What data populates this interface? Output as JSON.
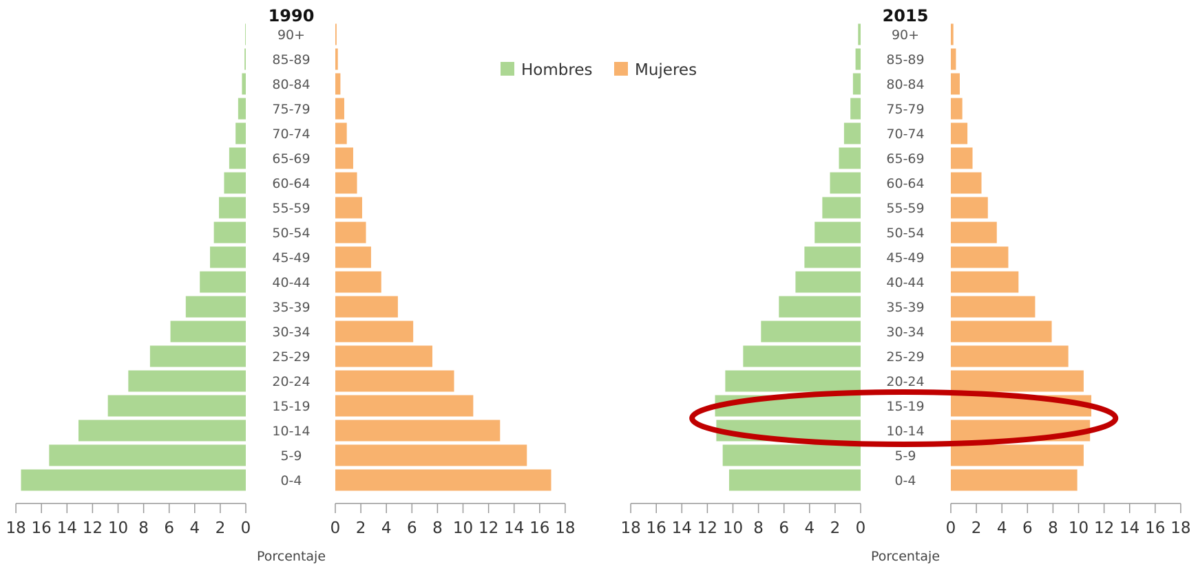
{
  "chart_data": [
    {
      "type": "bar",
      "title": "1990",
      "xlabel": "Porcentaje",
      "categories": [
        "0-4",
        "5-9",
        "10-14",
        "15-19",
        "20-24",
        "25-29",
        "30-34",
        "35-39",
        "40-44",
        "45-49",
        "50-54",
        "55-59",
        "60-64",
        "65-69",
        "70-74",
        "75-79",
        "80-84",
        "85-89",
        "90+"
      ],
      "series": [
        {
          "name": "Hombres",
          "color": "#acd793",
          "values": [
            17.6,
            15.4,
            13.1,
            10.8,
            9.2,
            7.5,
            5.9,
            4.7,
            3.6,
            2.8,
            2.5,
            2.1,
            1.7,
            1.3,
            0.8,
            0.6,
            0.3,
            0.1,
            0.05
          ]
        },
        {
          "name": "Mujeres",
          "color": "#f8b26e",
          "values": [
            16.9,
            15.0,
            12.9,
            10.8,
            9.3,
            7.6,
            6.1,
            4.9,
            3.6,
            2.8,
            2.4,
            2.1,
            1.7,
            1.4,
            0.9,
            0.7,
            0.4,
            0.2,
            0.1
          ]
        }
      ],
      "xlim": [
        0,
        18
      ],
      "ticks": [
        "18",
        "16",
        "14",
        "12",
        "10",
        "8",
        "6",
        "4",
        "2",
        "0",
        "0",
        "2",
        "4",
        "6",
        "8",
        "10",
        "12",
        "14",
        "16",
        "18"
      ]
    },
    {
      "type": "bar",
      "title": "2015",
      "xlabel": "Porcentaje",
      "categories": [
        "0-4",
        "5-9",
        "10-14",
        "15-19",
        "20-24",
        "25-29",
        "30-34",
        "35-39",
        "40-44",
        "45-49",
        "50-54",
        "55-59",
        "60-64",
        "65-69",
        "70-74",
        "75-79",
        "80-84",
        "85-89",
        "90+"
      ],
      "series": [
        {
          "name": "Hombres",
          "color": "#acd793",
          "values": [
            10.3,
            10.8,
            11.3,
            11.4,
            10.6,
            9.2,
            7.8,
            6.4,
            5.1,
            4.4,
            3.6,
            3.0,
            2.4,
            1.7,
            1.3,
            0.8,
            0.6,
            0.4,
            0.2
          ]
        },
        {
          "name": "Mujeres",
          "color": "#f8b26e",
          "values": [
            9.9,
            10.4,
            10.9,
            11.0,
            10.4,
            9.2,
            7.9,
            6.6,
            5.3,
            4.5,
            3.6,
            2.9,
            2.4,
            1.7,
            1.3,
            0.9,
            0.7,
            0.4,
            0.2
          ]
        }
      ],
      "xlim": [
        0,
        18
      ],
      "ticks": [
        "18",
        "16",
        "14",
        "12",
        "10",
        "8",
        "6",
        "4",
        "2",
        "0",
        "0",
        "2",
        "4",
        "6",
        "8",
        "10",
        "12",
        "14",
        "16",
        "18"
      ],
      "annotation": {
        "shape": "ellipse",
        "color": "#c00000",
        "highlights": [
          "10-14",
          "15-19"
        ]
      }
    }
  ],
  "legend": {
    "items": [
      {
        "label": "Hombres",
        "color": "#acd793"
      },
      {
        "label": "Mujeres",
        "color": "#f8b26e"
      }
    ]
  },
  "colors": {
    "axis": "#999999",
    "highlight": "#c00000"
  }
}
